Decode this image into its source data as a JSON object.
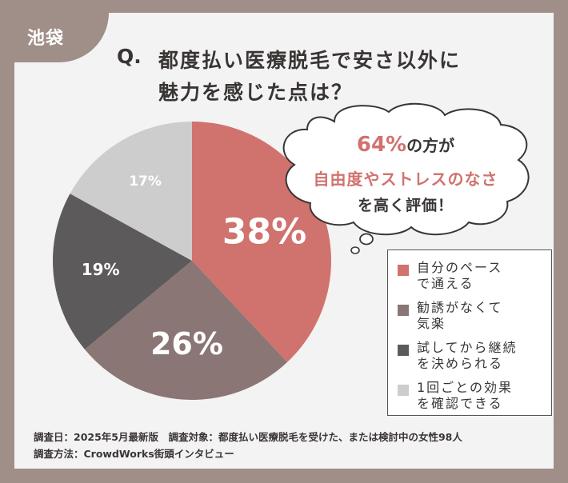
{
  "tag": {
    "label": "池袋"
  },
  "title": {
    "q": "Q.",
    "line1": "都度払い医療脱毛で安さ以外に",
    "line2": "魅力を感じた点は？"
  },
  "callout": {
    "highlight": "64%",
    "line1_rest": "の方が",
    "line2": "自由度やストレスのなさ",
    "line3": "を高く評価！"
  },
  "chart_data": {
    "type": "pie",
    "title": "都度払い医療脱毛で安さ以外に魅力を感じた点は？",
    "labels": [
      "自分のペースで通える",
      "勧誘がなくて気楽",
      "試してから継続を決められる",
      "1回ごとの効果を確認できる"
    ],
    "values": [
      38,
      26,
      19,
      17
    ],
    "value_labels": [
      "38%",
      "26%",
      "19%",
      "17%"
    ],
    "colors": [
      "#d0726e",
      "#8a7674",
      "#5c5a5a",
      "#cdcdcd"
    ],
    "start": "12 o'clock, clockwise",
    "legend_position": "right"
  },
  "legend": {
    "items": [
      {
        "line1": "自分のペース",
        "line2": "で通える",
        "color": "#d0726e"
      },
      {
        "line1": "勧誘がなくて",
        "line2": "気楽",
        "color": "#8a7674"
      },
      {
        "line1": "試してから継続",
        "line2": "を決められる",
        "color": "#5c5a5a"
      },
      {
        "line1": "1回ごとの効果",
        "line2": "を確認できる",
        "color": "#cdcdcd"
      }
    ]
  },
  "footer": {
    "line1": "調査日：2025年5月最新版　調査対象：都度払い医療脱毛を受けた、または検討中の女性98人",
    "line2": "調査方法：CrowdWorks街頭インタビュー"
  }
}
